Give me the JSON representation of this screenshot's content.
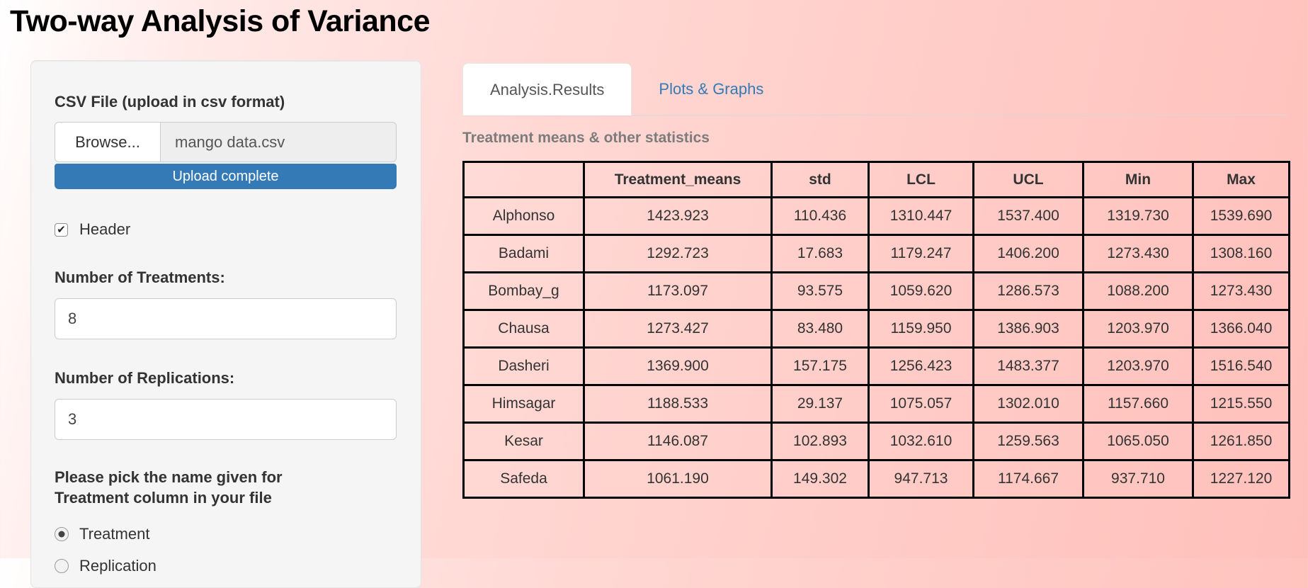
{
  "page": {
    "title": "Two-way Analysis of Variance"
  },
  "sidebar": {
    "csv_label": "CSV File (upload in csv format)",
    "browse_label": "Browse...",
    "file_name": "mango data.csv",
    "upload_status": "Upload complete",
    "header_label": "Header",
    "header_checked": true,
    "treatments_label": "Number of Treatments:",
    "treatments_value": "8",
    "replications_label": "Number of Replications:",
    "replications_value": "3",
    "radio_group_label": "Please pick the name given for Treatment column in your file",
    "radio_options": [
      {
        "label": "Treatment",
        "selected": true
      },
      {
        "label": "Replication",
        "selected": false
      }
    ]
  },
  "tabs": [
    {
      "label": "Analysis.Results",
      "active": true
    },
    {
      "label": "Plots & Graphs",
      "active": false
    }
  ],
  "main": {
    "section_heading": "Treatment means & other statistics"
  },
  "table": {
    "columns": [
      "",
      "Treatment_means",
      "std",
      "LCL",
      "UCL",
      "Min",
      "Max"
    ],
    "rows": [
      {
        "name": "Alphonso",
        "values": [
          "1423.923",
          "110.436",
          "1310.447",
          "1537.400",
          "1319.730",
          "1539.690"
        ]
      },
      {
        "name": "Badami",
        "values": [
          "1292.723",
          "17.683",
          "1179.247",
          "1406.200",
          "1273.430",
          "1308.160"
        ]
      },
      {
        "name": "Bombay_g",
        "values": [
          "1173.097",
          "93.575",
          "1059.620",
          "1286.573",
          "1088.200",
          "1273.430"
        ]
      },
      {
        "name": "Chausa",
        "values": [
          "1273.427",
          "83.480",
          "1159.950",
          "1386.903",
          "1203.970",
          "1366.040"
        ]
      },
      {
        "name": "Dasheri",
        "values": [
          "1369.900",
          "157.175",
          "1256.423",
          "1483.377",
          "1203.970",
          "1516.540"
        ]
      },
      {
        "name": "Himsagar",
        "values": [
          "1188.533",
          "29.137",
          "1075.057",
          "1302.010",
          "1157.660",
          "1215.550"
        ]
      },
      {
        "name": "Kesar",
        "values": [
          "1146.087",
          "102.893",
          "1032.610",
          "1259.563",
          "1065.050",
          "1261.850"
        ]
      },
      {
        "name": "Safeda",
        "values": [
          "1061.190",
          "149.302",
          "947.713",
          "1174.667",
          "937.710",
          "1227.120"
        ]
      }
    ]
  },
  "icons": {
    "check": "✔"
  },
  "colors": {
    "accent_blue": "#337ab7",
    "link_blue": "#337ab7",
    "table_border": "#000000",
    "page_pink": "#ffd6d2",
    "sidebar_gray": "#f5f5f5"
  }
}
